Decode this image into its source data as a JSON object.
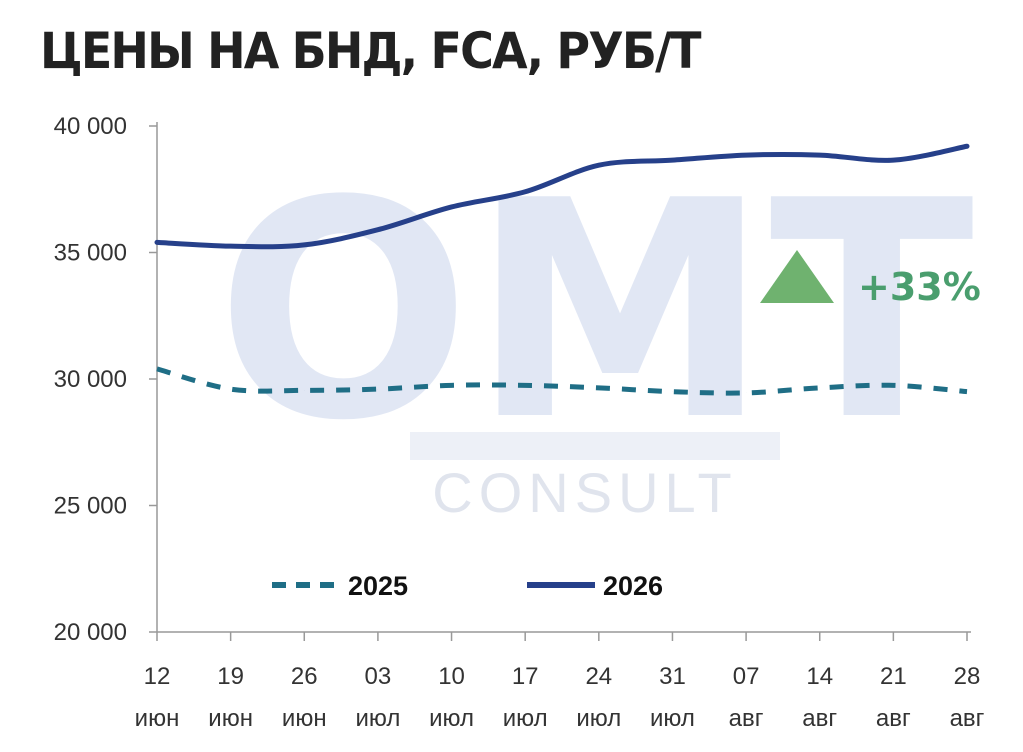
{
  "title": "ЦЕНЫ НА БНД, FCA, РУБ/Т",
  "watermark": {
    "main": "OMT",
    "sub": "CONSULT"
  },
  "annotation": {
    "text": "+33%",
    "icon": "triangle-up-icon",
    "color": "#4a9e6e"
  },
  "colors": {
    "series2025": "#1f6e86",
    "series2026": "#26408a",
    "axis": "#999999"
  },
  "chart_data": {
    "type": "line",
    "title": "ЦЕНЫ НА БНД, FCA, РУБ/Т",
    "x_labels": [
      [
        "12",
        "июн"
      ],
      [
        "19",
        "июн"
      ],
      [
        "26",
        "июн"
      ],
      [
        "03",
        "июл"
      ],
      [
        "10",
        "июл"
      ],
      [
        "17",
        "июл"
      ],
      [
        "24",
        "июл"
      ],
      [
        "31",
        "июл"
      ],
      [
        "07",
        "авг"
      ],
      [
        "14",
        "авг"
      ],
      [
        "21",
        "авг"
      ],
      [
        "28",
        "авг"
      ]
    ],
    "y_ticks": [
      "20 000",
      "25 000",
      "30 000",
      "35 000",
      "40 000"
    ],
    "ylim": [
      20000,
      40000
    ],
    "legend_position": "bottom",
    "series": [
      {
        "name": "2025",
        "style": "dashed",
        "values": [
          30400,
          29600,
          29550,
          29600,
          29750,
          29750,
          29650,
          29500,
          29450,
          29650,
          29750,
          29500
        ]
      },
      {
        "name": "2026",
        "style": "solid",
        "values": [
          35400,
          35250,
          35300,
          35900,
          36800,
          37400,
          38450,
          38650,
          38850,
          38850,
          38650,
          39200
        ]
      }
    ]
  }
}
